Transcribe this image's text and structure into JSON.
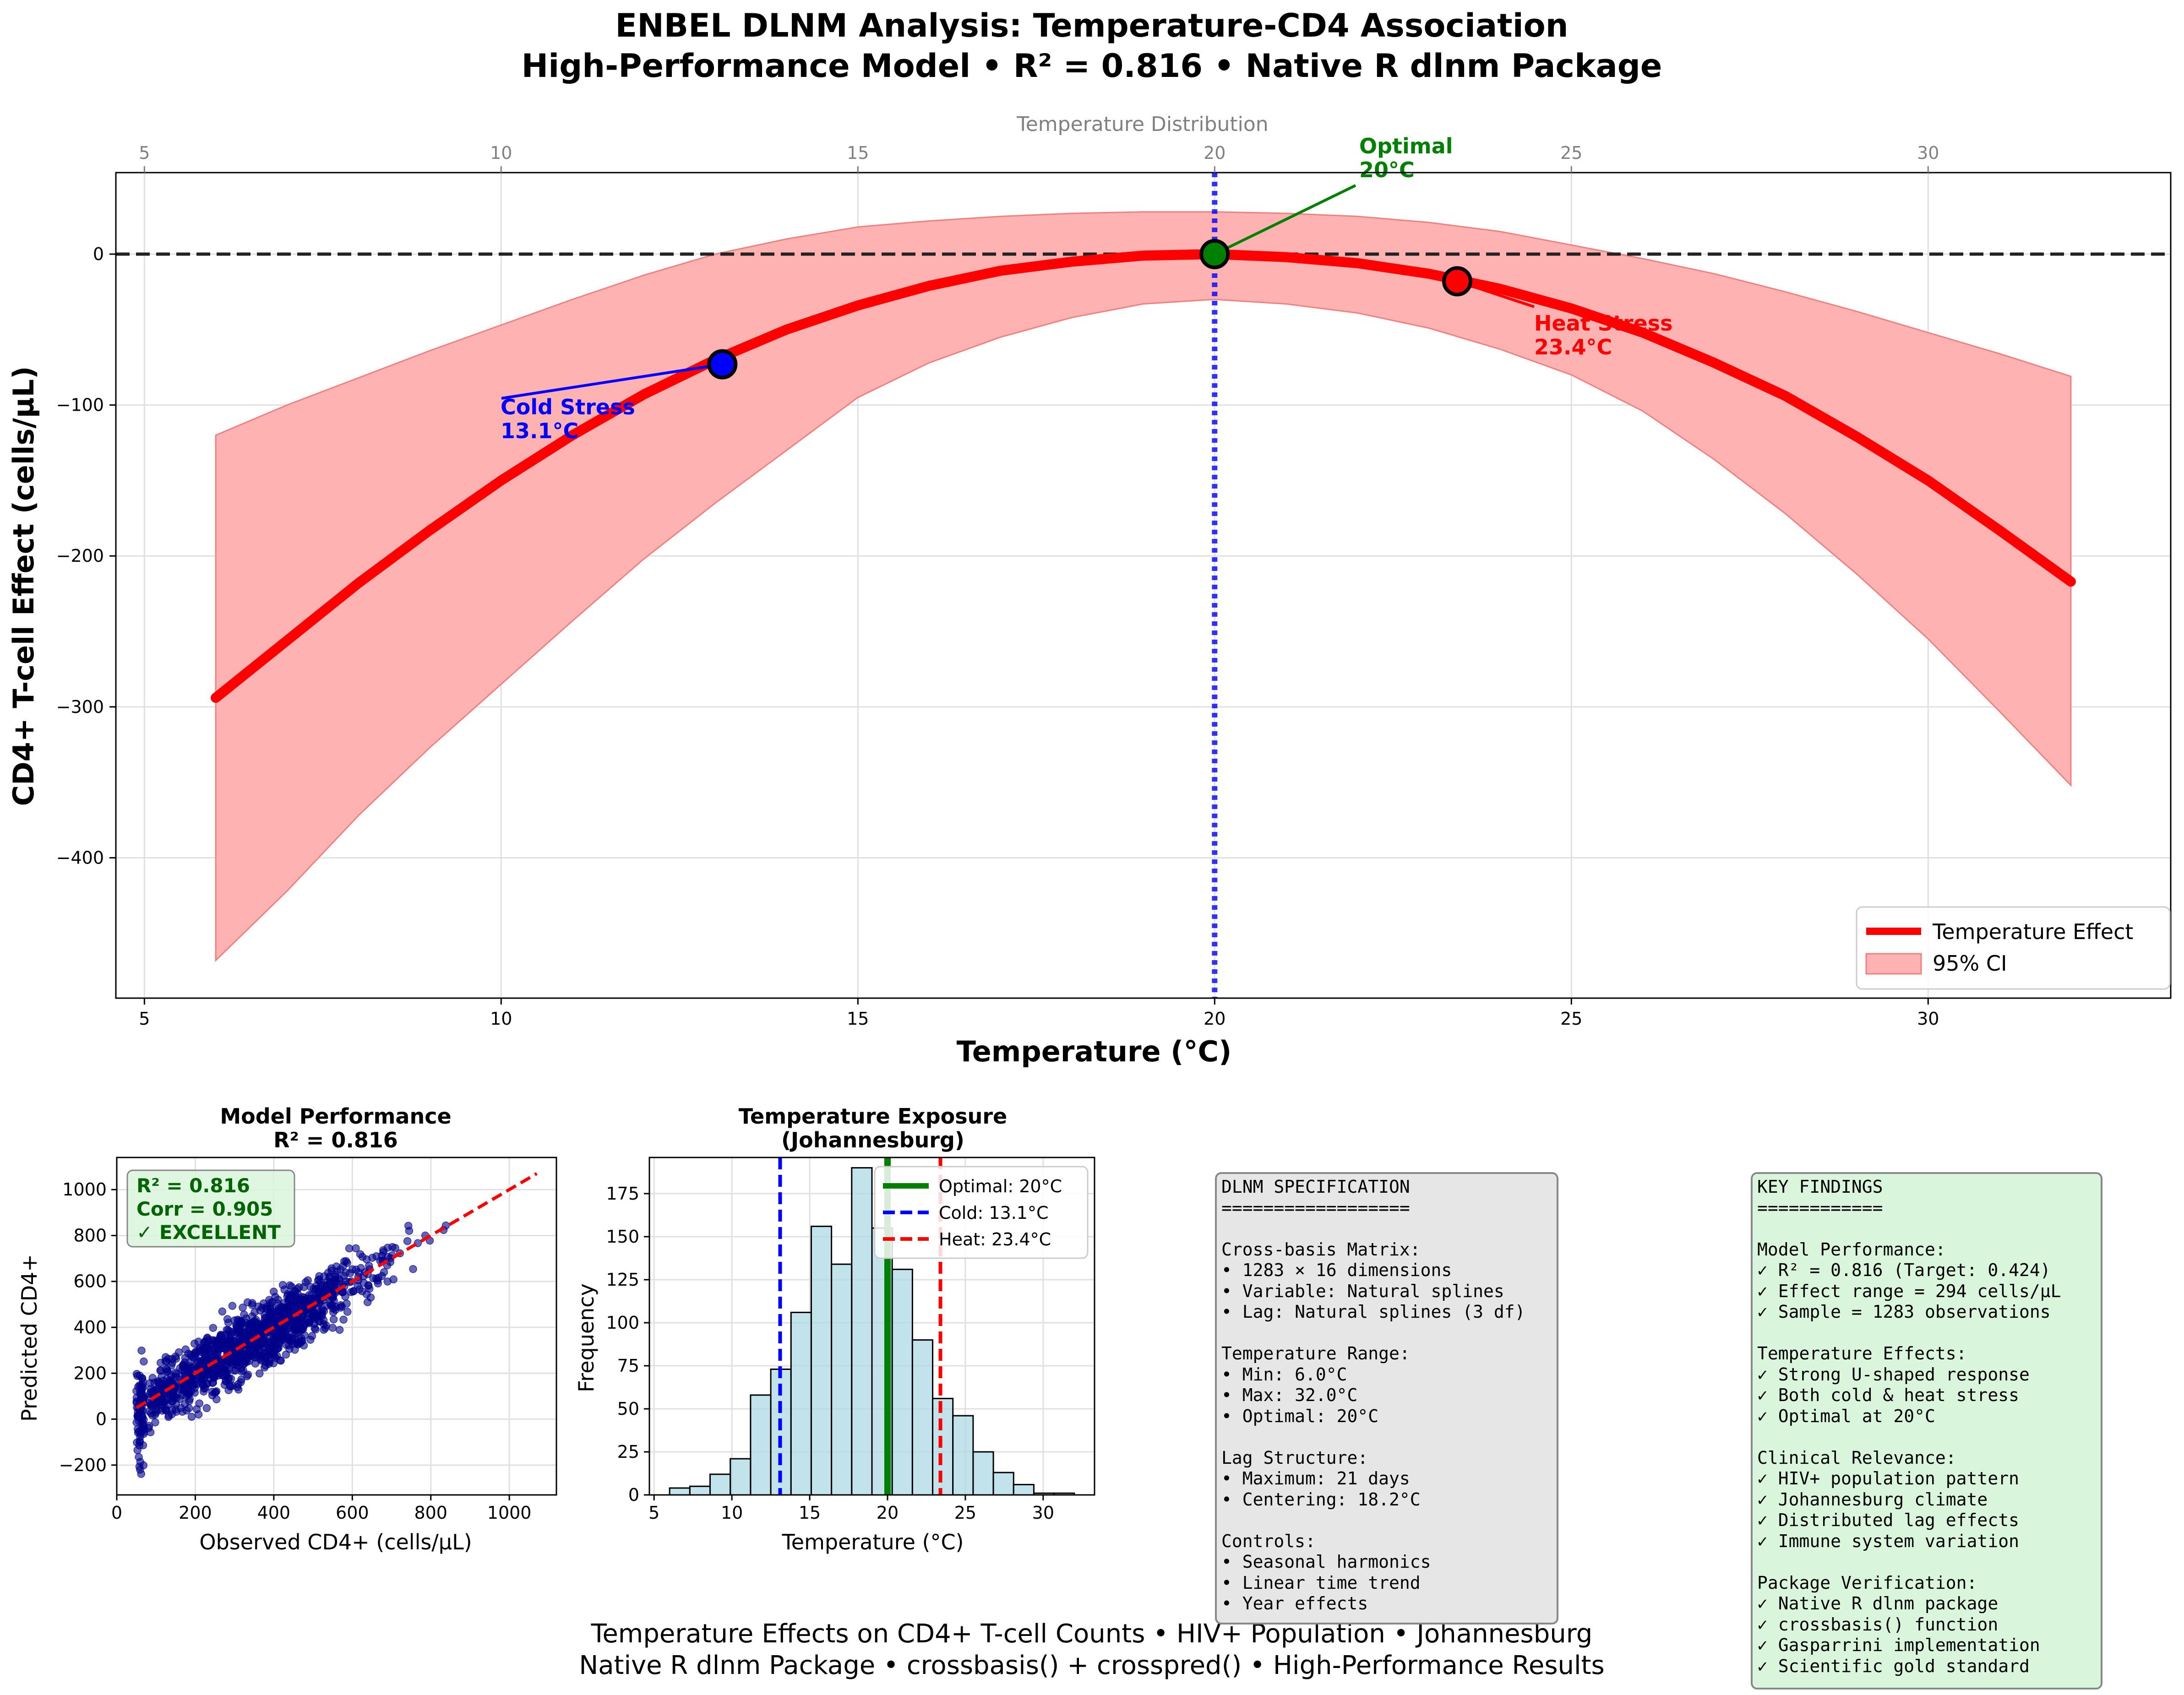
{
  "title": {
    "line1": "ENBEL DLNM Analysis: Temperature-CD4 Association",
    "line2": "High-Performance Model • R² = 0.816 • Native R dlnm Package"
  },
  "footer": {
    "line1": "Temperature Effects on CD4+ T-cell Counts • HIV+ Population • Johannesburg",
    "line2": "Native R dlnm Package • crossbasis() + crosspred() • High-Performance Results"
  },
  "colors": {
    "curve": "#ff0000",
    "ci": "#ffb2b2",
    "optimal": "#008000",
    "cold": "#0000ff",
    "heat": "#ff0000",
    "hist_bar": "#add8e6",
    "scatter": "#00008b",
    "spec_box": "#e6e6e6",
    "findings_box": "#d9f5dc"
  },
  "chart_data": [
    {
      "type": "line",
      "id": "main",
      "xlabel": "Temperature (°C)",
      "ylabel": "CD4+ T-cell Effect (cells/µL)",
      "top_axis_label": "Temperature Distribution",
      "xlim": [
        4.6,
        33.4
      ],
      "ylim": [
        -493,
        54
      ],
      "xticks": [
        5,
        10,
        15,
        20,
        25,
        30
      ],
      "yticks": [
        0,
        -100,
        -200,
        -300,
        -400
      ],
      "grid": true,
      "legend_position": "lower right",
      "legend": [
        "Temperature Effect",
        "95% CI"
      ],
      "series": [
        {
          "name": "Temperature Effect",
          "x": [
            6,
            7,
            8,
            9,
            10,
            11,
            12,
            13,
            14,
            15,
            16,
            17,
            18,
            19,
            20,
            21,
            22,
            23,
            24,
            25,
            26,
            27,
            28,
            29,
            30,
            31,
            32
          ],
          "y": [
            -294,
            -256,
            -218,
            -183,
            -150,
            -120,
            -93,
            -70,
            -50,
            -34,
            -21,
            -11,
            -5,
            -1,
            0,
            -2,
            -6,
            -13,
            -23,
            -36,
            -52,
            -72,
            -94,
            -121,
            -150,
            -183,
            -217
          ]
        },
        {
          "name": "95% CI",
          "x": [
            6,
            7,
            8,
            9,
            10,
            11,
            12,
            13,
            14,
            15,
            16,
            17,
            18,
            19,
            20,
            21,
            22,
            23,
            24,
            25,
            26,
            27,
            28,
            29,
            30,
            31,
            32
          ],
          "lower": [
            -468,
            -422,
            -372,
            -327,
            -285,
            -243,
            -202,
            -165,
            -130,
            -95,
            -72,
            -55,
            -42,
            -33,
            -30,
            -33,
            -39,
            -49,
            -63,
            -80,
            -104,
            -136,
            -172,
            -212,
            -255,
            -303,
            -352
          ],
          "upper": [
            -120,
            -100,
            -82,
            -64,
            -47,
            -30,
            -14,
            0,
            10,
            18,
            22,
            25,
            27,
            28,
            28,
            27,
            25,
            21,
            15,
            6,
            -3,
            -13,
            -25,
            -38,
            -52,
            -66,
            -81
          ]
        }
      ],
      "reference_lines": {
        "horizontal_y": 0,
        "vertical_x": 20
      },
      "markers": [
        {
          "name": "Cold Stress",
          "x": 13.1,
          "y": -73,
          "label1": "Cold Stress",
          "label2": "13.1°C"
        },
        {
          "name": "Optimal",
          "x": 20,
          "y": 0,
          "label1": "Optimal",
          "label2": "20°C"
        },
        {
          "name": "Heat Stress",
          "x": 23.4,
          "y": -18,
          "label1": "Heat Stress",
          "label2": "23.4°C"
        }
      ]
    },
    {
      "type": "scatter",
      "id": "performance",
      "title": "Model Performance",
      "subtitle": "R² = 0.816",
      "xlabel": "Observed CD4+ (cells/µL)",
      "ylabel": "Predicted CD4+",
      "xlim": [
        0,
        1120
      ],
      "ylim": [
        -330,
        1140
      ],
      "xticks": [
        0,
        200,
        400,
        600,
        800,
        1000
      ],
      "yticks": [
        -200,
        0,
        200,
        400,
        600,
        800,
        1000
      ],
      "grid": true,
      "fit_line": {
        "x": [
          50,
          1070
        ],
        "y": [
          50,
          1070
        ]
      },
      "n_points": 1283,
      "stats": [
        "R² = 0.816",
        "Corr = 0.905",
        "✓ EXCELLENT"
      ]
    },
    {
      "type": "bar",
      "id": "histogram",
      "title": "Temperature Exposure",
      "subtitle": "(Johannesburg)",
      "xlabel": "Temperature (°C)",
      "ylabel": "Frequency",
      "xlim": [
        4.7,
        33.3
      ],
      "ylim": [
        0,
        196
      ],
      "xticks": [
        5,
        10,
        15,
        20,
        25,
        30
      ],
      "yticks": [
        0,
        25,
        50,
        75,
        100,
        125,
        150,
        175
      ],
      "grid": true,
      "bin_edges": [
        6,
        7.3,
        8.6,
        9.9,
        11.2,
        12.5,
        13.8,
        15.1,
        16.4,
        17.7,
        19,
        20.3,
        21.6,
        22.9,
        24.2,
        25.5,
        26.8,
        28.1,
        29.4,
        30.7,
        32
      ],
      "values": [
        4,
        5,
        12,
        21,
        58,
        73,
        106,
        156,
        134,
        190,
        155,
        131,
        90,
        56,
        46,
        25,
        13,
        6,
        1,
        1
      ],
      "legend_position": "upper right",
      "vlines": [
        {
          "name": "Optimal: 20°C",
          "x": 20,
          "color": "#008000",
          "style": "solid"
        },
        {
          "name": "Cold: 13.1°C",
          "x": 13.1,
          "color": "#0000ff",
          "style": "dashed"
        },
        {
          "name": "Heat: 23.4°C",
          "x": 23.4,
          "color": "#ff0000",
          "style": "dashed"
        }
      ]
    }
  ],
  "spec_box": {
    "lines": [
      "DLNM SPECIFICATION",
      "==================",
      "",
      "Cross-basis Matrix:",
      "• 1283 × 16 dimensions",
      "• Variable: Natural splines",
      "• Lag: Natural splines (3 df)",
      "",
      "Temperature Range:",
      "• Min: 6.0°C",
      "• Max: 32.0°C",
      "• Optimal: 20°C",
      "",
      "Lag Structure:",
      "• Maximum: 21 days",
      "• Centering: 18.2°C",
      "",
      "Controls:",
      "• Seasonal harmonics",
      "• Linear time trend",
      "• Year effects"
    ]
  },
  "findings_box": {
    "lines": [
      "KEY FINDINGS",
      "============",
      "",
      "Model Performance:",
      "✓ R² = 0.816 (Target: 0.424)",
      "✓ Effect range = 294 cells/µL",
      "✓ Sample = 1283 observations",
      "",
      "Temperature Effects:",
      "✓ Strong U-shaped response",
      "✓ Both cold & heat stress",
      "✓ Optimal at 20°C",
      "",
      "Clinical Relevance:",
      "✓ HIV+ population pattern",
      "✓ Johannesburg climate",
      "✓ Distributed lag effects",
      "✓ Immune system variation",
      "",
      "Package Verification:",
      "✓ Native R dlnm package",
      "✓ crossbasis() function",
      "✓ Gasparrini implementation",
      "✓ Scientific gold standard"
    ]
  }
}
